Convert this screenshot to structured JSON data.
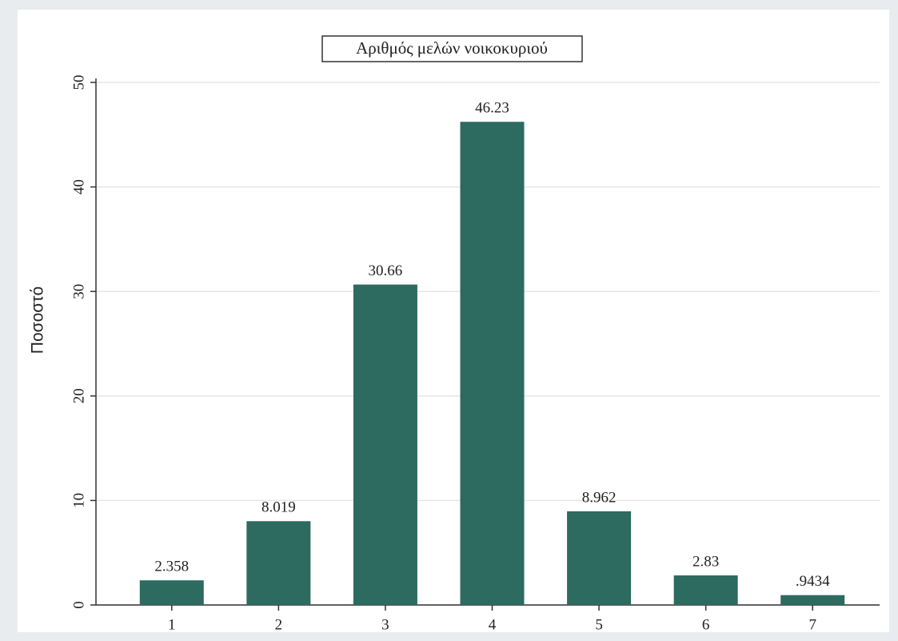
{
  "chart_data": {
    "type": "bar",
    "title": "Αριθμός μελών νοικοκυριού",
    "y_label": "Ποσοστό",
    "categories": [
      "1",
      "2",
      "3",
      "4",
      "5",
      "6",
      "7"
    ],
    "values": [
      2.358,
      8.019,
      30.66,
      46.23,
      8.962,
      2.83,
      0.9434
    ],
    "value_labels": [
      "2.358",
      "8.019",
      "30.66",
      "46.23",
      "8.962",
      "2.83",
      ".9434"
    ],
    "color": "#2d6a60",
    "ylim": [
      0,
      50
    ],
    "yticks": [
      0,
      10,
      20,
      30,
      40,
      50
    ],
    "grid": true
  }
}
